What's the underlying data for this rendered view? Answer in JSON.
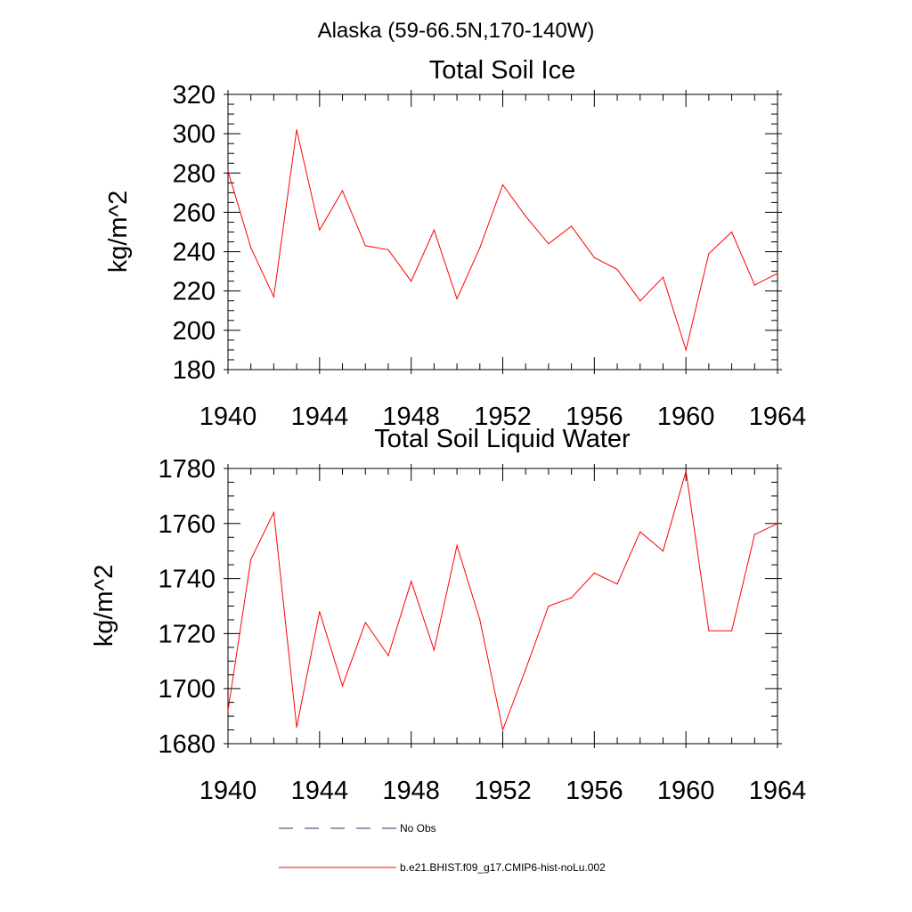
{
  "suptitle": "Alaska (59-66.5N,170-140W)",
  "chart_data": [
    {
      "type": "line",
      "title": "Total Soil Ice",
      "xlabel": "",
      "ylabel": "kg/m^2",
      "xlim": [
        1940,
        1964
      ],
      "ylim": [
        180,
        320
      ],
      "xticks": [
        1940,
        1944,
        1948,
        1952,
        1956,
        1960,
        1964
      ],
      "yticks": [
        180,
        200,
        220,
        240,
        260,
        280,
        300,
        320
      ],
      "series": [
        {
          "name": "b.e21.BHIST.f09_g17.CMIP6-hist-noLu.002",
          "color": "#ff0000",
          "x": [
            1940,
            1941,
            1942,
            1943,
            1944,
            1945,
            1946,
            1947,
            1948,
            1949,
            1950,
            1951,
            1952,
            1953,
            1954,
            1955,
            1956,
            1957,
            1958,
            1959,
            1960,
            1961,
            1962,
            1963,
            1964
          ],
          "y": [
            281,
            242,
            217,
            302,
            251,
            271,
            243,
            241,
            225,
            251,
            216,
            242,
            274,
            258,
            244,
            253,
            237,
            231,
            215,
            227,
            190,
            239,
            250,
            223,
            229
          ]
        }
      ]
    },
    {
      "type": "line",
      "title": "Total Soil Liquid Water",
      "xlabel": "",
      "ylabel": "kg/m^2",
      "xlim": [
        1940,
        1964
      ],
      "ylim": [
        1680,
        1780
      ],
      "xticks": [
        1940,
        1944,
        1948,
        1952,
        1956,
        1960,
        1964
      ],
      "yticks": [
        1680,
        1700,
        1720,
        1740,
        1760,
        1780
      ],
      "series": [
        {
          "name": "b.e21.BHIST.f09_g17.CMIP6-hist-noLu.002",
          "color": "#ff0000",
          "x": [
            1940,
            1941,
            1942,
            1943,
            1944,
            1945,
            1946,
            1947,
            1948,
            1949,
            1950,
            1951,
            1952,
            1953,
            1954,
            1955,
            1956,
            1957,
            1958,
            1959,
            1960,
            1961,
            1962,
            1963,
            1964
          ],
          "y": [
            1692,
            1747,
            1764,
            1686,
            1728,
            1701,
            1724,
            1712,
            1739,
            1714,
            1752,
            1725,
            1685,
            1707,
            1730,
            1733,
            1742,
            1738,
            1757,
            1750,
            1779,
            1721,
            1721,
            1756,
            1760
          ]
        }
      ]
    }
  ],
  "legend": {
    "entries": [
      {
        "label": "No Obs",
        "style": "dashed",
        "color": "#333366"
      },
      {
        "label": "b.e21.BHIST.f09_g17.CMIP6-hist-noLu.002",
        "style": "solid",
        "color": "#ff0000"
      }
    ]
  }
}
